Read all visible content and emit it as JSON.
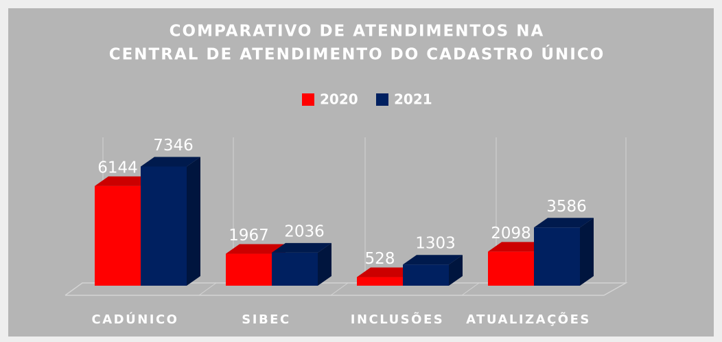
{
  "chart_data": {
    "type": "bar3d",
    "title": [
      "COMPARATIVO DE ATENDIMENTOS NA",
      "CENTRAL DE ATENDIMENTO DO CADASTRO ÚNICO"
    ],
    "categories": [
      "CADÚNICO",
      "SIBEC",
      "INCLUSÕES",
      "ATUALIZAÇÕES"
    ],
    "series": [
      {
        "name": "2020",
        "color": "#ff0000",
        "values": [
          6144,
          1967,
          528,
          2098
        ]
      },
      {
        "name": "2021",
        "color": "#002060",
        "values": [
          7346,
          2036,
          1303,
          3586
        ]
      }
    ],
    "ylim": [
      0,
      8000
    ]
  }
}
